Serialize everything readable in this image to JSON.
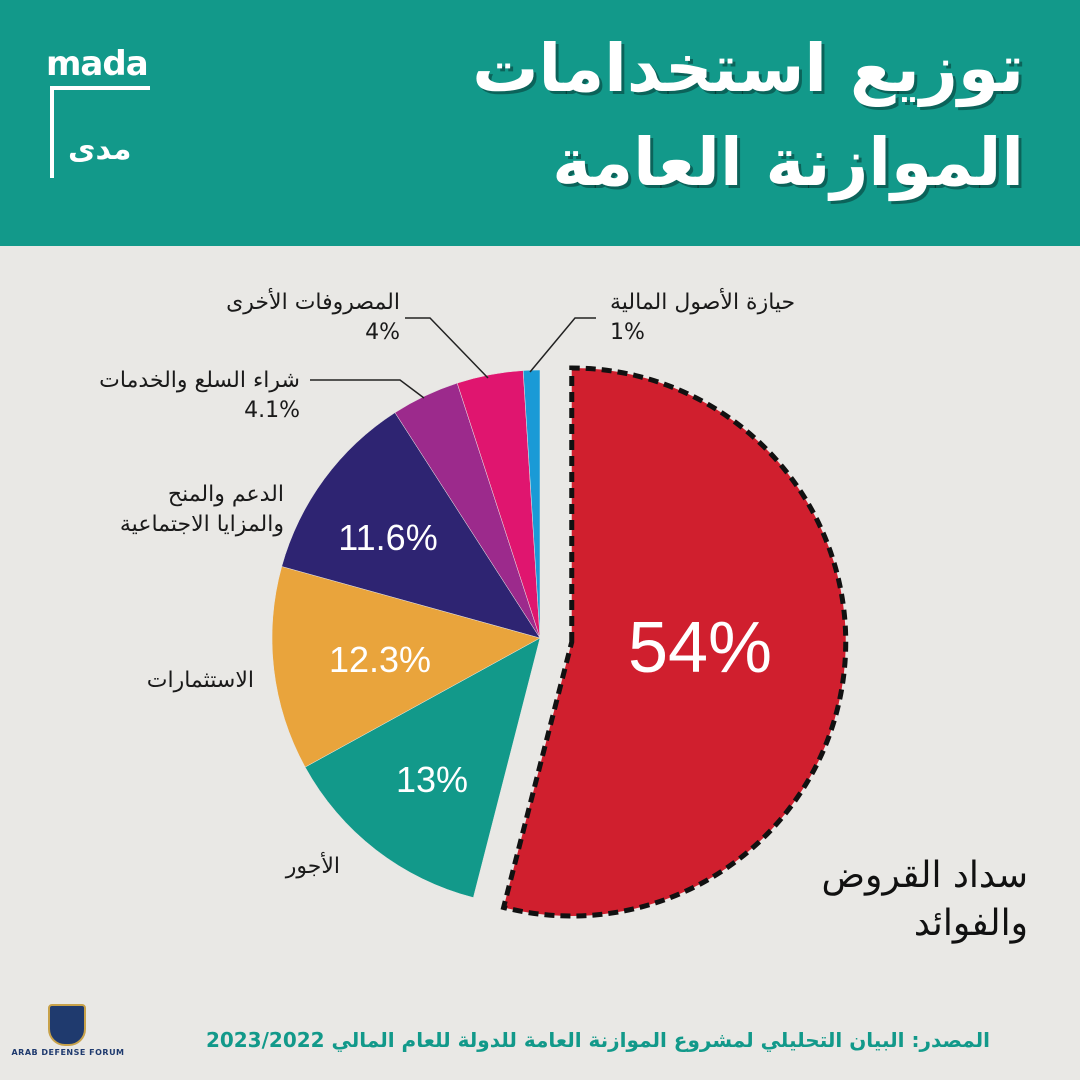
{
  "header": {
    "title_line1": "توزيع  استخدامات",
    "title_line2": "الموازنة العامة",
    "logo_en": "mada",
    "logo_ar": "مدى"
  },
  "colors": {
    "header_bg": "#12998a",
    "background": "#e9e8e5",
    "accent_text": "#12998a"
  },
  "chart_data": {
    "type": "pie",
    "title": "توزيع  استخدامات الموازنة العامة",
    "slices": [
      {
        "label": "سداد القروض والفوائد",
        "value": 54,
        "display": "54%",
        "color": "#d01f2e",
        "exploded": true
      },
      {
        "label": "الأجور",
        "value": 13,
        "display": "13%",
        "color": "#12998a"
      },
      {
        "label": "الاستثمارات",
        "value": 12.3,
        "display": "12.3%",
        "color": "#e9a43c"
      },
      {
        "label": "الدعم والمنح والمزايا الاجتماعية",
        "value": 11.6,
        "display": "11.6%",
        "color": "#2e2472"
      },
      {
        "label": "شراء السلع والخدمات",
        "value": 4.1,
        "display": "4.1%",
        "color": "#9c2a8c"
      },
      {
        "label": "المصروفات الأخرى",
        "value": 4,
        "display": "4%",
        "color": "#e0156f"
      },
      {
        "label": "حيازة الأصول المالية",
        "value": 1,
        "display": "1%",
        "color": "#1a9ad6"
      }
    ]
  },
  "labels": {
    "debt_line1": "سداد القروض",
    "debt_line2": "والفوائد",
    "debt_pct": "54%",
    "wages": "الأجور",
    "wages_pct": "13%",
    "investments": "الاستثمارات",
    "investments_pct": "12.3%",
    "subsidies_line1": "الدعم والمنح",
    "subsidies_line2": "والمزايا الاجتماعية",
    "subsidies_pct": "11.6%",
    "goods_label": "شراء السلع والخدمات",
    "goods_pct": "4.1%",
    "other_label": "المصروفات الأخرى",
    "other_pct": "4%",
    "assets_label": "حيازة الأصول المالية",
    "assets_pct": "1%"
  },
  "source": "المصدر: البيان التحليلي لمشروع الموازنة العامة للدولة للعام المالي 2023/2022",
  "watermark": {
    "text": "ARAB DEFENSE FORUM"
  }
}
